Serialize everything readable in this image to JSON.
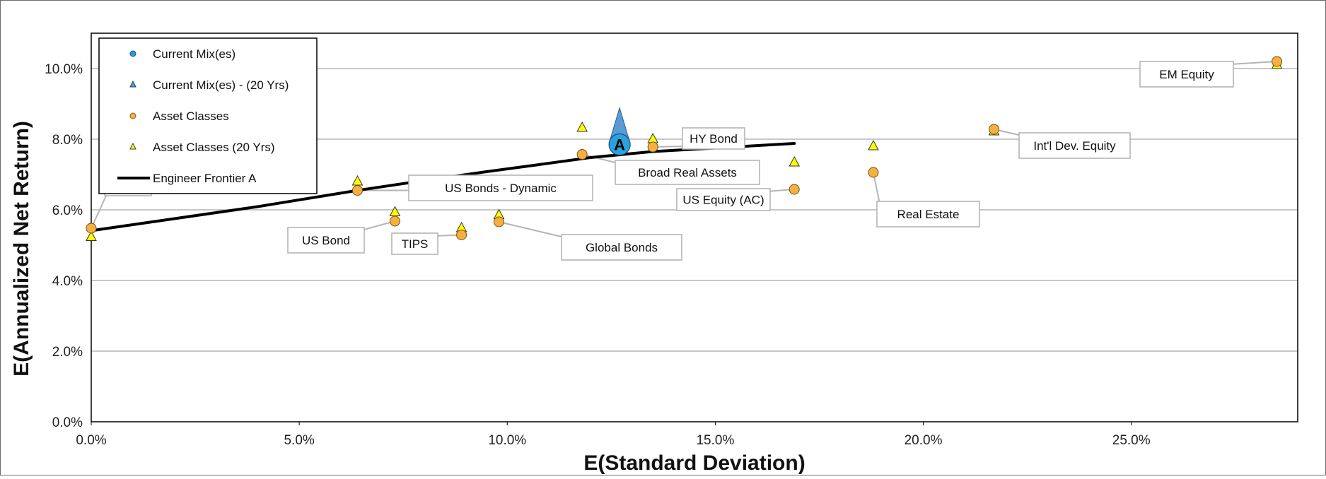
{
  "chart_data": {
    "type": "scatter",
    "xlabel": "E(Standard Deviation)",
    "ylabel": "E(Annualized Net Return)",
    "xlim": [
      0,
      0.29
    ],
    "ylim": [
      0,
      0.11
    ],
    "x_ticks": [
      {
        "value": 0.0,
        "label": "0.0%"
      },
      {
        "value": 0.05,
        "label": "5.0%"
      },
      {
        "value": 0.1,
        "label": "10.0%"
      },
      {
        "value": 0.15,
        "label": "15.0%"
      },
      {
        "value": 0.2,
        "label": "20.0%"
      },
      {
        "value": 0.25,
        "label": "25.0%"
      }
    ],
    "y_ticks": [
      {
        "value": 0.0,
        "label": "0.0%"
      },
      {
        "value": 0.02,
        "label": "2.0%"
      },
      {
        "value": 0.04,
        "label": "4.0%"
      },
      {
        "value": 0.06,
        "label": "6.0%"
      },
      {
        "value": 0.08,
        "label": "8.0%"
      },
      {
        "value": 0.1,
        "label": "10.0%"
      }
    ],
    "grid": "horizontal",
    "legend_position": "top-left",
    "legend": [
      {
        "label": "Current Mix(es)",
        "marker": "circle-blue"
      },
      {
        "label": "Current Mix(es) - (20 Yrs)",
        "marker": "triangle-blue"
      },
      {
        "label": "Asset Classes",
        "marker": "circle-orange"
      },
      {
        "label": "Asset Classes (20 Yrs)",
        "marker": "triangle-yellow"
      },
      {
        "label": "Engineer Frontier A",
        "marker": "line-black"
      }
    ],
    "current_mix": {
      "label": "A",
      "x": 0.127,
      "y": 0.0785,
      "x_20yr": 0.127,
      "y_20yr": 0.0805
    },
    "asset_classes": [
      {
        "name": "",
        "x": 0.0,
        "y": 0.0548,
        "y_20yr": 0.0523
      },
      {
        "name": "US Bonds - Dynamic",
        "x": 0.064,
        "y": 0.0655,
        "y_20yr": 0.068
      },
      {
        "name": "US Bond",
        "x": 0.073,
        "y": 0.0568,
        "y_20yr": 0.0593
      },
      {
        "name": "TIPS",
        "x": 0.089,
        "y": 0.0529,
        "y_20yr": 0.0548
      },
      {
        "name": "Global Bonds",
        "x": 0.098,
        "y": 0.0566,
        "y_20yr": 0.0585
      },
      {
        "name": "Broad Real Assets",
        "x": 0.118,
        "y": 0.0757,
        "y_20yr": 0.0832
      },
      {
        "name": "HY Bond",
        "x": 0.135,
        "y": 0.0778,
        "y_20yr": 0.08
      },
      {
        "name": "US Equity (AC)",
        "x": 0.169,
        "y": 0.0658,
        "y_20yr": 0.0734
      },
      {
        "name": "Real Estate",
        "x": 0.188,
        "y": 0.0706,
        "y_20yr": 0.078
      },
      {
        "name": "Int'l Dev. Equity",
        "x": 0.217,
        "y": 0.0828,
        "y_20yr": 0.0822
      },
      {
        "name": "EM Equity",
        "x": 0.285,
        "y": 0.102,
        "y_20yr": 0.101
      }
    ],
    "frontier": {
      "name": "Engineer Frontier A",
      "x": [
        0.0,
        0.02,
        0.04,
        0.064,
        0.08,
        0.095,
        0.107,
        0.12,
        0.135,
        0.15,
        0.169
      ],
      "y": [
        0.0541,
        0.0575,
        0.0609,
        0.0655,
        0.0683,
        0.0708,
        0.0727,
        0.0748,
        0.0765,
        0.0775,
        0.0788
      ]
    }
  }
}
